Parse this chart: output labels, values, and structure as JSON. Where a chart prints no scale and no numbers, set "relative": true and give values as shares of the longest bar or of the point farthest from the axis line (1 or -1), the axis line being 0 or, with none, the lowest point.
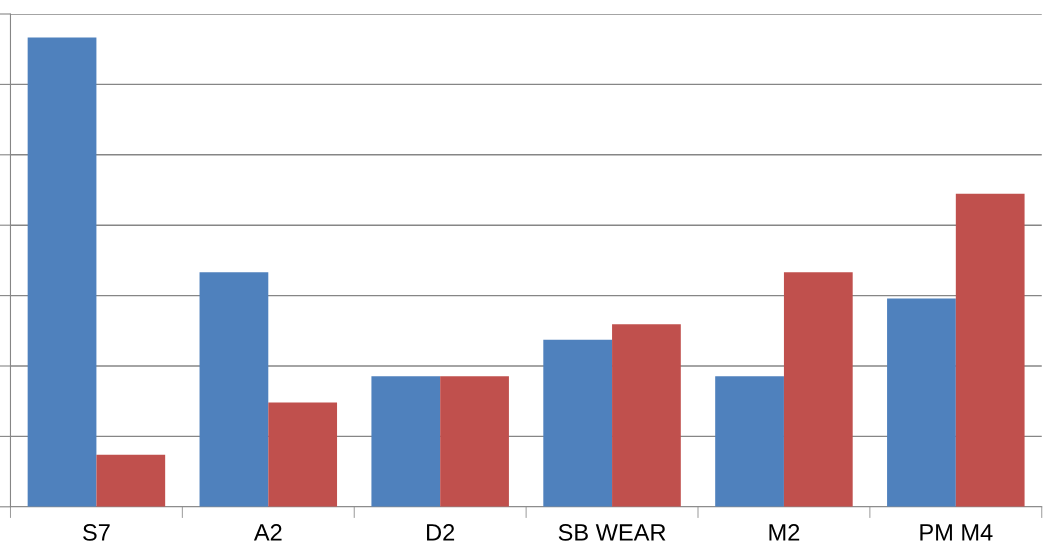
{
  "chart_data": {
    "type": "bar",
    "relative": true,
    "grid": "y",
    "categories": [
      "S7",
      "A2",
      "D2",
      "SB WEAR",
      "M2",
      "PM M4"
    ],
    "series": [
      {
        "color": "#4f81bd",
        "values": [
          1,
          0.5,
          0.278,
          0.356,
          0.278,
          0.444
        ]
      },
      {
        "color": "#c0504d",
        "values": [
          0.111,
          0.222,
          0.278,
          0.389,
          0.5,
          0.667
        ]
      }
    ]
  }
}
